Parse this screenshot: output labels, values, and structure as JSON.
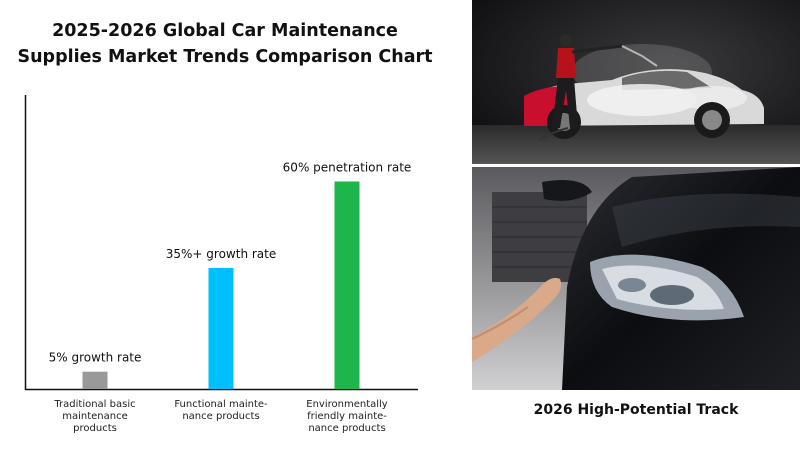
{
  "chart_data": {
    "type": "bar",
    "title_lines": [
      "2025-2026 Global Car Maintenance",
      "Supplies Market Trends Comparison Chart"
    ],
    "categories": [
      [
        "Traditional basic",
        "maintenance",
        "products"
      ],
      [
        "Functional mainte-",
        "nance products"
      ],
      [
        "Environmentally",
        "friendly mainte-",
        "nance products"
      ]
    ],
    "values": [
      5,
      35,
      60
    ],
    "bar_labels": [
      "5% growth rate",
      "35%+ growth rate",
      "60% penetration rate"
    ],
    "colors": [
      "#999999",
      "#00bfff",
      "#1db64a"
    ],
    "ylim": [
      0,
      85
    ],
    "grid": false,
    "xlabel": "",
    "ylabel": ""
  },
  "photos": {
    "top_icon": "car-wash-photo",
    "bottom_icon": "car-headlight-polish-photo"
  },
  "caption": "2026 High-Potential Track"
}
